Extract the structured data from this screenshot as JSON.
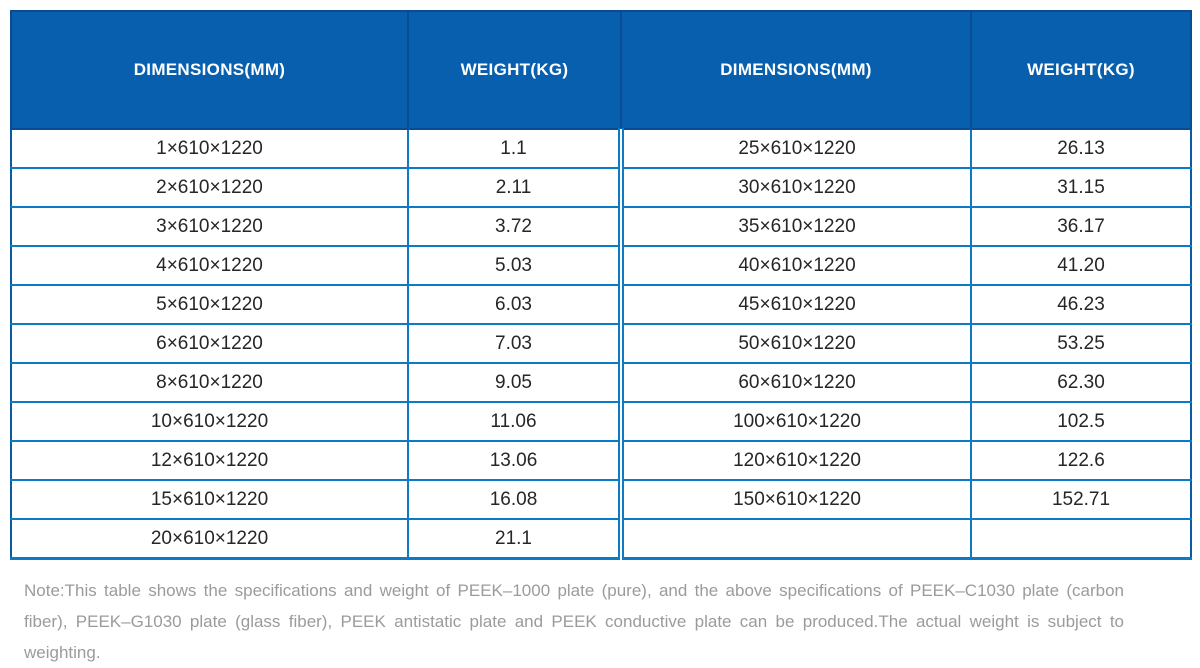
{
  "colors": {
    "header_bg": "#075fae",
    "header_border": "#0a4c94",
    "grid_line": "#0d7ac4",
    "outer_border": "#0b5aa8",
    "body_text": "#262626",
    "header_text": "#ffffff",
    "note_text": "#9b9b9b",
    "page_bg": "#ffffff"
  },
  "table": {
    "headers": [
      "DIMENSIONS(MM)",
      "WEIGHT(KG)",
      "DIMENSIONS(MM)",
      "WEIGHT(KG)"
    ],
    "rows": [
      [
        "1×610×1220",
        "1.1",
        "25×610×1220",
        "26.13"
      ],
      [
        "2×610×1220",
        "2.11",
        "30×610×1220",
        "31.15"
      ],
      [
        "3×610×1220",
        "3.72",
        "35×610×1220",
        "36.17"
      ],
      [
        "4×610×1220",
        "5.03",
        "40×610×1220",
        "41.20"
      ],
      [
        "5×610×1220",
        "6.03",
        "45×610×1220",
        "46.23"
      ],
      [
        "6×610×1220",
        "7.03",
        "50×610×1220",
        "53.25"
      ],
      [
        "8×610×1220",
        "9.05",
        "60×610×1220",
        "62.30"
      ],
      [
        "10×610×1220",
        "11.06",
        "100×610×1220",
        "102.5"
      ],
      [
        "12×610×1220",
        "13.06",
        "120×610×1220",
        "122.6"
      ],
      [
        "15×610×1220",
        "16.08",
        "150×610×1220",
        "152.71"
      ],
      [
        "20×610×1220",
        "21.1",
        "",
        ""
      ]
    ]
  },
  "note": {
    "text": "Note:This table shows the specifications and weight of PEEK–1000 plate (pure), and the above specifications of PEEK–C1030 plate (carbon fiber), PEEK–G1030 plate (glass fiber), PEEK antistatic plate and PEEK conductive plate can be produced.The actual weight is subject to weighting."
  }
}
